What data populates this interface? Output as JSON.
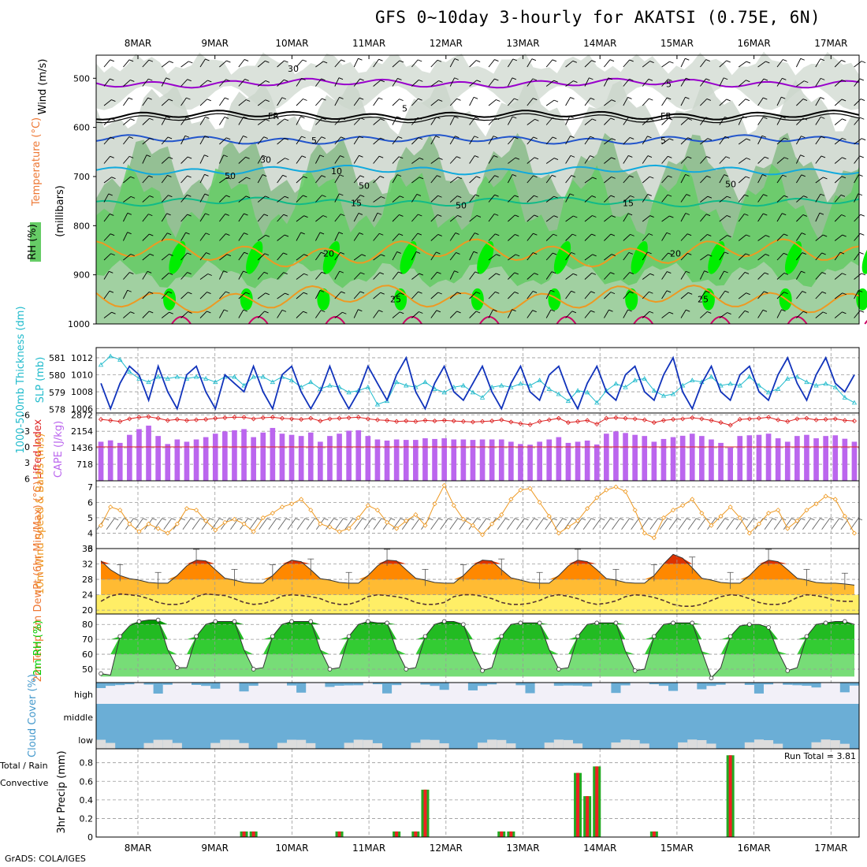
{
  "title": "GFS 0~10day 3-hourly for AKATSI (0.75E, 6N)",
  "credit": "GrADS: COLA/IGES",
  "dates": [
    "8MAR",
    "9MAR",
    "10MAR",
    "11MAR",
    "12MAR",
    "13MAR",
    "14MAR",
    "15MAR",
    "16MAR",
    "17MAR"
  ],
  "colors": {
    "rh_light": "#ccd6cc",
    "rh_mid": "#88bb88",
    "rh_green": "#66cc66",
    "rh_bright": "#00ee00",
    "wind_line": "#9900cc",
    "fr_line": "#000000",
    "t_blue": "#2255cc",
    "t_cyan": "#11aadd",
    "t_teal": "#11bb88",
    "t_orange": "#ee9922",
    "t_red": "#dd3300",
    "t_pink": "#cc0066",
    "slp": "#1133bb",
    "thick": "#22bbcc",
    "cape": "#bb66ee",
    "li": "#dd2222",
    "wind10": "#ee9922",
    "temp_red": "#dd3300",
    "temp_orange": "#ff8800",
    "temp_yellow": "#ffee66",
    "rh2m": "#00cc00",
    "cloud": "#6baed6",
    "cloud_gray": "#dddddd",
    "precip_green": "#22aa22",
    "precip_red": "#ee2222"
  },
  "chart_data": [
    {
      "type": "heatmap",
      "name": "upper",
      "ylabel_parts": [
        "Wind (m/s)",
        "Temperature (°C)",
        "RH (%)",
        "(millibars)"
      ],
      "yticks": [
        500,
        600,
        700,
        800,
        900,
        1000
      ],
      "ylim": [
        1000,
        453
      ],
      "rh_contours": [
        "30",
        "50"
      ],
      "isotherm_labels": [
        {
          "label": "5",
          "color": "#9900cc"
        },
        {
          "label": "FR",
          "color": "#000000"
        },
        {
          "label": "5",
          "color": "#2255cc"
        },
        {
          "label": "10",
          "color": "#11aadd"
        },
        {
          "label": "15",
          "color": "#11bb88"
        },
        {
          "label": "20",
          "color": "#ee9922"
        },
        {
          "label": "25",
          "color": "#dd3300"
        }
      ],
      "isotherms": [
        {
          "key": "purple",
          "base": 510
        },
        {
          "key": "fr",
          "base": 575
        },
        {
          "key": "blue",
          "base": 625
        },
        {
          "key": "cyan",
          "base": 687
        },
        {
          "key": "teal",
          "base": 752
        },
        {
          "key": "orange1",
          "base": 855
        },
        {
          "key": "orange2",
          "base": 948
        }
      ]
    },
    {
      "type": "line",
      "name": "slp_thickness",
      "ylabel_left": "1000-500mb Thickness (dm)",
      "ylabel_right": "SLP (mb)",
      "left_ticks": [
        "581",
        "580",
        "579",
        "578"
      ],
      "right_ticks": [
        "1012",
        "1010",
        "1008",
        "1006"
      ],
      "series": [
        {
          "name": "SLP (mb)",
          "values": [
            1009,
            1006,
            1009,
            1011,
            1010,
            1007,
            1011,
            1008,
            1006,
            1010,
            1011,
            1008,
            1006,
            1010,
            1009,
            1008,
            1011,
            1008,
            1006,
            1010,
            1011,
            1008,
            1006,
            1008,
            1011,
            1008,
            1006,
            1008,
            1011,
            1009,
            1007,
            1010,
            1012,
            1008,
            1006,
            1009,
            1011,
            1008,
            1007,
            1009,
            1011,
            1008,
            1006,
            1009,
            1011,
            1008,
            1007,
            1010,
            1011,
            1008,
            1006,
            1009,
            1011,
            1008,
            1007,
            1010,
            1011,
            1008,
            1007,
            1010,
            1012,
            1008,
            1006,
            1009,
            1011,
            1008,
            1007,
            1010,
            1011,
            1008,
            1007,
            1010,
            1012,
            1009,
            1007,
            1010,
            1012,
            1009,
            1008,
            1010
          ]
        },
        {
          "name": "Thickness (dm)",
          "values": [
            580.6,
            581.1,
            580.9,
            580.2,
            579.8,
            579.6,
            579.9,
            579.8,
            579.9,
            579.8,
            579.9,
            579.8,
            579.6,
            579.9,
            579.9,
            579.4,
            579.9,
            579.9,
            579.6,
            579.9,
            579.7,
            579.3,
            579.6,
            579.2,
            579.4,
            579.3,
            579.0,
            579.1,
            579.3,
            578.3,
            578.5,
            579.6,
            579.4,
            579.3,
            579.6,
            579.2,
            579.0,
            579.3,
            579.4,
            579.0,
            578.7,
            579.3,
            579.4,
            579.3,
            579.5,
            579.4,
            579.7,
            579.2,
            578.9,
            578.5,
            579.1,
            579.0,
            578.4,
            579.1,
            579.5,
            579.3,
            579.7,
            579.8,
            579.1,
            578.8,
            578.9,
            579.4,
            579.7,
            579.6,
            579.9,
            579.4,
            579.5,
            579.4,
            579.9,
            579.4,
            579.0,
            579.2,
            579.8,
            579.9,
            579.6,
            579.4,
            579.5,
            579.3,
            578.7,
            578.4
          ]
        }
      ]
    },
    {
      "type": "bar",
      "name": "cape_li",
      "ylabel_left": "Lifted Index",
      "ylabel_right": "CAPE (J/kg)",
      "left_ticks": [
        "-6",
        "-3",
        "0",
        "3",
        "6"
      ],
      "right_ticks": [
        "2872",
        "2154",
        "1436",
        "718"
      ],
      "series": [
        {
          "name": "CAPE (J/kg)",
          "values": [
            1700,
            1760,
            1650,
            2000,
            2250,
            2400,
            1950,
            1600,
            1800,
            1700,
            1800,
            1900,
            2050,
            2150,
            2200,
            2250,
            1900,
            2100,
            2300,
            2050,
            2000,
            1950,
            2100,
            1700,
            1950,
            2050,
            2180,
            2200,
            1950,
            1800,
            1750,
            1800,
            1780,
            1780,
            1850,
            1820,
            1850,
            1800,
            1800,
            1780,
            1800,
            1800,
            1800,
            1700,
            1600,
            1570,
            1700,
            1800,
            1900,
            1650,
            1700,
            1750,
            1580,
            2050,
            2150,
            2080,
            2000,
            1950,
            1700,
            1820,
            1900,
            1960,
            2050,
            1950,
            1800,
            1650,
            1450,
            1950,
            1980,
            2000,
            2050,
            1850,
            1700,
            1950,
            2000,
            1850,
            1950,
            1980,
            1830,
            1700
          ]
        },
        {
          "name": "Lifted Index",
          "values": [
            -5.2,
            -5,
            -4.8,
            -5.3,
            -5.6,
            -5.7,
            -5.4,
            -5,
            -5.2,
            -5,
            -5.1,
            -5.2,
            -5.4,
            -5.5,
            -5.6,
            -5.6,
            -5.3,
            -5.5,
            -5.6,
            -5.4,
            -5.3,
            -5.2,
            -5.4,
            -4.9,
            -5.3,
            -5.4,
            -5.5,
            -5.6,
            -5.3,
            -5.1,
            -5,
            -4.8,
            -4.9,
            -4.8,
            -5,
            -4.9,
            -5,
            -4.9,
            -4.8,
            -4.7,
            -4.8,
            -4.9,
            -5.1,
            -4.7,
            -4.4,
            -4.2,
            -4.8,
            -5.1,
            -5.4,
            -4.6,
            -4.8,
            -5,
            -4.3,
            -5.4,
            -5.5,
            -5.4,
            -5.3,
            -5.1,
            -4.6,
            -5,
            -5.2,
            -5.3,
            -5.5,
            -5.3,
            -5,
            -4.6,
            -4.1,
            -5.2,
            -5.3,
            -5.4,
            -5.6,
            -5.1,
            -4.8,
            -5.3,
            -5.4,
            -5.1,
            -5.2,
            -5.3,
            -5,
            -4.9
          ]
        }
      ]
    },
    {
      "type": "line",
      "name": "wind10m",
      "ylabel": "10m Wind Speed & Barbs (m/s)",
      "yticks": [
        "3",
        "4",
        "5",
        "6",
        "7"
      ],
      "ylim": [
        3,
        7.4
      ],
      "series": [
        {
          "name": "10m Wind Speed",
          "values": [
            4.5,
            5.7,
            5.5,
            4.6,
            4.1,
            4.6,
            4.3,
            4,
            4.6,
            5.6,
            5.5,
            4.8,
            4.2,
            4.7,
            4.9,
            4.6,
            4.1,
            5,
            5.3,
            5.7,
            5.9,
            6.2,
            5.5,
            4.6,
            4.4,
            4.1,
            4.3,
            5,
            5.8,
            5.5,
            4.7,
            4.3,
            4.8,
            5.2,
            4.5,
            5.9,
            7.1,
            5.8,
            4.9,
            4.5,
            3.9,
            4.6,
            5.2,
            6.2,
            6.8,
            6.9,
            6,
            5.1,
            4,
            4.4,
            4.8,
            5.6,
            6.3,
            6.8,
            7,
            6.7,
            5.5,
            4,
            3.7,
            5,
            5.5,
            5.8,
            6.2,
            5.3,
            4.5,
            5.1,
            5.7,
            5,
            4,
            4.6,
            5.3,
            5.5,
            4.3,
            4.8,
            5.5,
            5.9,
            6.4,
            6.2,
            5.1,
            4
          ]
        }
      ]
    },
    {
      "type": "area",
      "name": "temp2m",
      "ylabel": "2m Temp 2m DewPt (6hr Min/Max) (°C)",
      "yticks": [
        "36",
        "32",
        "28",
        "24",
        "20"
      ],
      "ylim": [
        19,
        36
      ],
      "series": [
        {
          "name": "2m Temp",
          "values": [
            32.8,
            30.5,
            29,
            28.2,
            27.8,
            27.2,
            27,
            27,
            29,
            31.5,
            33,
            32.8,
            30.5,
            28.3,
            27.8,
            27.2,
            27,
            27,
            29,
            31.5,
            33,
            32.6,
            30.5,
            28.2,
            27.8,
            27.2,
            27,
            27,
            29,
            31.5,
            33,
            32.8,
            30.5,
            28.3,
            27.8,
            27.2,
            27,
            27,
            29,
            31.5,
            33,
            32.8,
            30.5,
            28.4,
            27.8,
            27.2,
            27,
            27,
            29,
            31.5,
            33,
            32.6,
            30.5,
            28.2,
            27.8,
            27.2,
            27,
            27,
            29,
            32,
            34.5,
            33.5,
            31,
            28.3,
            27.8,
            27.2,
            27,
            27,
            29,
            31.5,
            33,
            32.6,
            30.5,
            28.3,
            27.8,
            27.2,
            27,
            27,
            26.8,
            26.5
          ]
        },
        {
          "name": "2m DewPt",
          "values": [
            22.3,
            23.7,
            24.2,
            24,
            23.7,
            23,
            22,
            21.5,
            21.5,
            22,
            23.5,
            24.2,
            24,
            23.8,
            23,
            22,
            21.5,
            21.7,
            22.5,
            23.7,
            24,
            23.8,
            23.5,
            23,
            22,
            21.5,
            21.5,
            22.3,
            23.5,
            24,
            23.8,
            23.5,
            23,
            22,
            21.5,
            21.5,
            22,
            23.5,
            24,
            24,
            23.6,
            23,
            22,
            21.5,
            21.5,
            21.8,
            22.5,
            23.6,
            24,
            23.6,
            23,
            22,
            21.5,
            21.8,
            22.4,
            23.5,
            24,
            23.8,
            23.3,
            22.5,
            21.5,
            21,
            21,
            21.5,
            22.5,
            23.5,
            24,
            23.8,
            23,
            22,
            21.5,
            21.5,
            22,
            23.3,
            24,
            23.8,
            23.3,
            22.5,
            22.3,
            22.3
          ]
        }
      ]
    },
    {
      "type": "area",
      "name": "rh2m",
      "ylabel": "2m RH (%)",
      "yticks": [
        "50",
        "60",
        "70",
        "80"
      ],
      "ylim": [
        41,
        87
      ],
      "series": [
        {
          "name": "2m RH",
          "values": [
            47,
            46,
            72,
            79,
            82,
            83,
            83,
            63,
            51,
            51,
            72,
            80,
            82,
            82,
            82,
            63,
            50,
            51,
            72,
            80,
            82,
            82,
            82,
            63,
            50,
            51,
            72,
            80,
            82,
            81,
            81,
            63,
            50,
            51,
            72,
            80,
            82,
            82,
            80,
            62,
            49,
            51,
            72,
            80,
            81,
            81,
            81,
            63,
            50,
            51,
            72,
            80,
            81,
            81,
            81,
            62,
            49,
            50,
            72,
            80,
            81,
            81,
            81,
            62,
            44,
            51,
            72,
            79,
            80,
            80,
            78,
            62,
            49,
            51,
            72,
            80,
            81,
            82,
            82,
            80
          ]
        }
      ]
    },
    {
      "type": "bar",
      "name": "cloud",
      "ylabel": "Cloud Cover (%)",
      "levels": [
        "high",
        "middle",
        "low"
      ]
    },
    {
      "type": "bar",
      "name": "precip",
      "ylabel": "3hr Precip (mm)",
      "ylabel_legend_1": "Total / Rain",
      "ylabel_legend_2": "Convective",
      "run_total": "Run Total = 3.81",
      "yticks": [
        "0",
        "0.2",
        "0.4",
        "0.6",
        "0.8"
      ],
      "ylim": [
        0,
        0.95
      ],
      "series": [
        {
          "name": "3hr Precip",
          "points": [
            [
              15,
              0.06
            ],
            [
              16,
              0.06
            ],
            [
              25,
              0.06
            ],
            [
              31,
              0.06
            ],
            [
              33,
              0.06
            ],
            [
              34,
              0.51
            ],
            [
              42,
              0.06
            ],
            [
              43,
              0.06
            ],
            [
              50,
              0.69
            ],
            [
              51,
              0.44
            ],
            [
              52,
              0.76
            ],
            [
              58,
              0.06
            ],
            [
              66,
              0.88
            ]
          ]
        }
      ]
    }
  ]
}
